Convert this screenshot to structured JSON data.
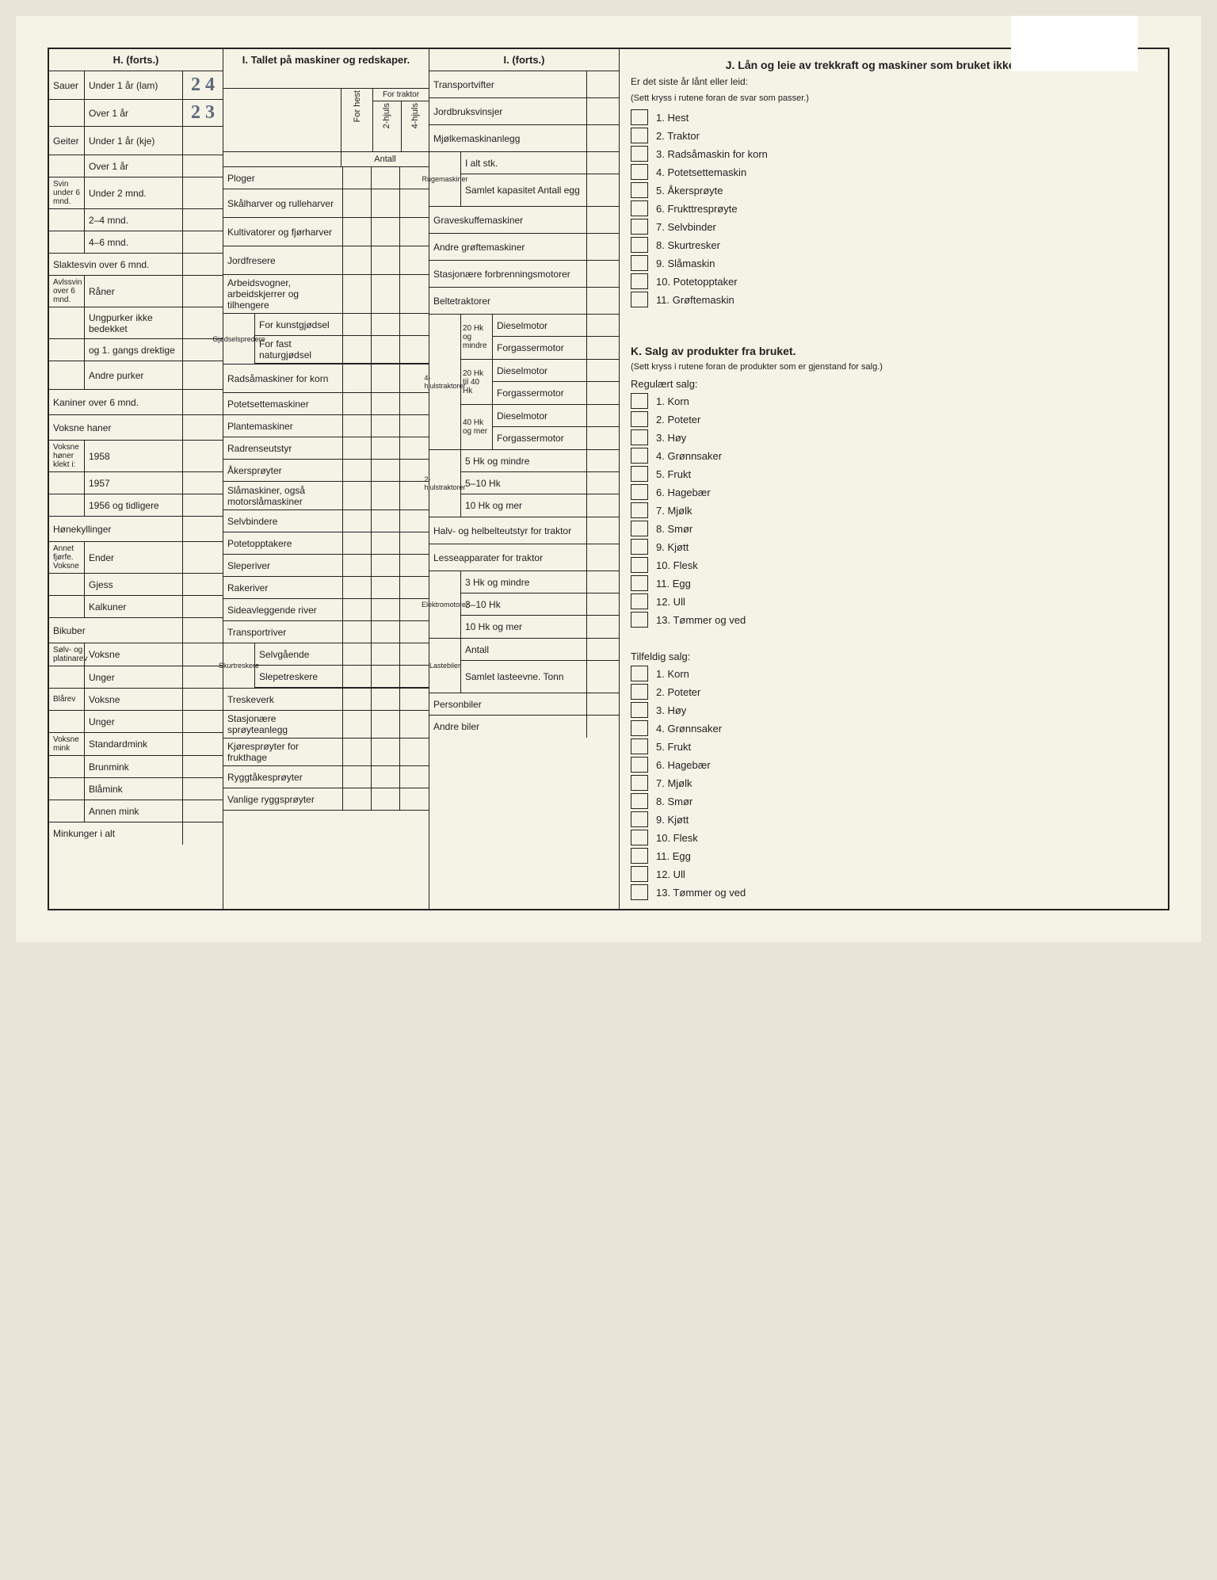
{
  "sectionH": {
    "title": "H. (forts.)",
    "sauer": {
      "label": "Sauer",
      "under1": "Under 1 år (lam)",
      "under1_val": "2 4",
      "over1": "Over 1 år",
      "over1_val": "2 3"
    },
    "geiter": {
      "label": "Geiter",
      "under1": "Under 1 år (kje)",
      "over1": "Over 1 år"
    },
    "svin": {
      "label": "Svin under 6 mnd.",
      "r1": "Under 2 mnd.",
      "r2": "2–4 mnd.",
      "r3": "4–6 mnd."
    },
    "slaktesvin": "Slaktesvin over 6 mnd.",
    "avlssvin": {
      "label": "Avlssvin over 6 mnd.",
      "raner": "Råner",
      "ungpurker": "Ungpurker ikke bedekket",
      "bedekket": "og 1. gangs drektige",
      "andre": "Andre purker"
    },
    "kaniner": "Kaniner over 6 mnd.",
    "voksnehaner": "Voksne haner",
    "voksnehoner": {
      "label": "Voksne høner klekt i:",
      "r1": "1958",
      "r2": "1957",
      "r3": "1956 og tidligere"
    },
    "honekyllinger": "Hønekyllinger",
    "annetfjor": {
      "label": "Annet fjørfe. Voksne",
      "ender": "Ender",
      "gjess": "Gjess",
      "kalkuner": "Kalkuner"
    },
    "bikuber": "Bikuber",
    "solvrev": {
      "label": "Sølv- og platinarev",
      "voksne": "Voksne",
      "unger": "Unger"
    },
    "blarev": {
      "label": "Blårev",
      "voksne": "Voksne",
      "unger": "Unger"
    },
    "voksnemink": {
      "label": "Voksne mink",
      "std": "Standardmink",
      "brun": "Brunmink",
      "bla": "Blåmink",
      "annen": "Annen mink"
    },
    "minkunger": "Minkunger i alt"
  },
  "sectionI": {
    "title": "I. Tallet på maskiner og redskaper.",
    "forhest": "For hest",
    "fortraktor": "For traktor",
    "hjuls2": "2-hjuls",
    "hjuls4": "4-hjuls",
    "antall": "Antall",
    "items": [
      "Ploger",
      "Skålharver og rulleharver",
      "Kultivatorer og fjørharver",
      "Jordfresere",
      "Arbeidsvogner, arbeidskjerrer og tilhengere"
    ],
    "gjodsel": {
      "label": "Gjødselspredere",
      "kunst": "For kunstgjødsel",
      "natur": "For fast naturgjødsel"
    },
    "items2": [
      "Radsåmaskiner for korn",
      "Potetsettemaskiner",
      "Plantemaskiner",
      "Radrenseutstyr",
      "Åkersprøyter",
      "Slåmaskiner, også motorslåmaskiner",
      "Selvbindere",
      "Potetopptakere",
      "Sleperiver",
      "Rakeriver",
      "Sideavleggende river",
      "Transportriver"
    ],
    "skurtreskere": {
      "label": "Skurtreskere",
      "selv": "Selvgående",
      "slepe": "Slepetreskere"
    },
    "items3": [
      "Treskeverk",
      "Stasjonære sprøyteanlegg",
      "Kjøresprøyter for frukthage",
      "Ryggtåkesprøyter",
      "Vanlige ryggsprøyter"
    ]
  },
  "sectionIC": {
    "title": "I. (forts.)",
    "items1": [
      "Transportvifter",
      "Jordbruksvinsjer",
      "Mjølkemaskinanlegg"
    ],
    "ruge": {
      "label": "Rugemaskiner",
      "ialt": "I alt stk.",
      "samlet": "Samlet kapasitet Antall egg"
    },
    "items2": [
      "Graveskuffemaskiner",
      "Andre grøftemaskiner",
      "Stasjonære forbrenningsmotorer",
      "Beltetraktorer"
    ],
    "hjulstraktorer4": {
      "label": "4-hjulstraktorer",
      "g1": "20 Hk og mindre",
      "g2": "20 Hk til 40 Hk",
      "g3": "40 Hk og mer",
      "diesel": "Dieselmotor",
      "forgasser": "Forgassermotor"
    },
    "hjulstraktorer2": {
      "label": "2-hjulstraktorer",
      "r1": "5 Hk og mindre",
      "r2": "5–10 Hk",
      "r3": "10 Hk og mer"
    },
    "halvbelte": "Halv- og helbelteutstyr for traktor",
    "lesse": "Lesseapparater for traktor",
    "elektro": {
      "label": "Elektromotorer",
      "r1": "3 Hk og mindre",
      "r2": "3–10 Hk",
      "r3": "10 Hk og mer"
    },
    "lastebiler": {
      "label": "Lastebiler",
      "antall": "Antall",
      "samlet": "Samlet lasteevne. Tonn"
    },
    "personbiler": "Personbiler",
    "andrebiler": "Andre biler"
  },
  "sectionJ": {
    "title": "J. Lån og leie av trekkraft og maskiner som bruket ikke har selv.",
    "sub": "Er det siste år lånt eller leid:",
    "hint": "(Sett kryss i rutene foran de svar som passer.)",
    "items": [
      "1. Hest",
      "2. Traktor",
      "3. Radsåmaskin for korn",
      "4. Potetsettemaskin",
      "5. Åkersprøyte",
      "6. Frukttresprøyte",
      "7. Selvbinder",
      "8. Skurtresker",
      "9. Slåmaskin",
      "10. Potetopptaker",
      "11. Grøftemaskin"
    ]
  },
  "sectionK": {
    "title": "K. Salg av produkter fra bruket.",
    "hint": "(Sett kryss i rutene foran de produkter som er gjenstand for salg.)",
    "regulart": "Regulært salg:",
    "tilfeldig": "Tilfeldig salg:",
    "items": [
      "1. Korn",
      "2. Poteter",
      "3. Høy",
      "4. Grønnsaker",
      "5. Frukt",
      "6. Hagebær",
      "7. Mjølk",
      "8. Smør",
      "9. Kjøtt",
      "10. Flesk",
      "11. Egg",
      "12. Ull",
      "13. Tømmer og ved"
    ]
  }
}
